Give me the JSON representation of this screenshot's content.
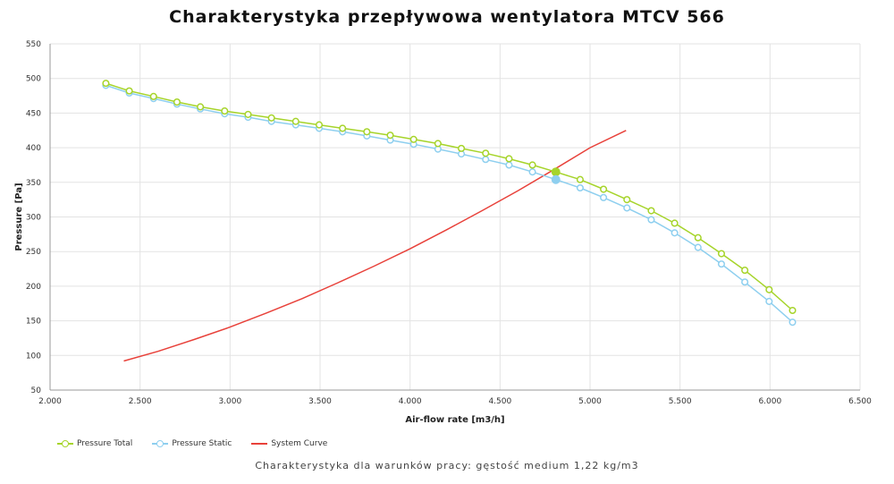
{
  "chart_data": {
    "type": "line",
    "title": "Charakterystyka przepływowa wentylatora MTCV 566",
    "xlabel": "Air-flow rate [m3/h]",
    "ylabel": "Pressure [Pa]",
    "xlim": [
      2000,
      6500
    ],
    "ylim": [
      50,
      550
    ],
    "x_ticks": [
      "2.000",
      "2.500",
      "3.000",
      "3.500",
      "4.000",
      "4.500",
      "5.000",
      "5.500",
      "6.000",
      "6.500"
    ],
    "x_tick_values": [
      2000,
      2500,
      3000,
      3500,
      4000,
      4500,
      5000,
      5500,
      6000,
      6500
    ],
    "y_ticks": [
      "550",
      "500",
      "450",
      "400",
      "350",
      "300",
      "250",
      "200",
      "150",
      "100",
      "50"
    ],
    "y_tick_values": [
      550,
      500,
      450,
      400,
      350,
      300,
      250,
      200,
      150,
      100,
      50
    ],
    "grid": true,
    "legend_position": "bottom-left",
    "series": [
      {
        "name": "Pressure Total",
        "color": "#a6d42a",
        "markers": true,
        "x": [
          2310,
          2440,
          2575,
          2705,
          2835,
          2970,
          3100,
          3230,
          3365,
          3495,
          3625,
          3760,
          3890,
          4020,
          4155,
          4285,
          4420,
          4550,
          4680,
          4810,
          4945,
          5075,
          5205,
          5340,
          5470,
          5600,
          5730,
          5860,
          5995,
          6125
        ],
        "y": [
          493,
          482,
          474,
          466,
          459,
          453,
          448,
          443,
          438,
          433,
          428,
          423,
          418,
          412,
          406,
          399,
          392,
          384,
          375,
          365,
          354,
          340,
          325,
          309,
          291,
          270,
          247,
          223,
          195,
          165
        ],
        "highlight": {
          "x": 4810,
          "y": 365
        }
      },
      {
        "name": "Pressure Static",
        "color": "#8ecfef",
        "markers": true,
        "x": [
          2310,
          2440,
          2575,
          2705,
          2835,
          2970,
          3100,
          3230,
          3365,
          3495,
          3625,
          3760,
          3890,
          4020,
          4155,
          4285,
          4420,
          4550,
          4680,
          4810,
          4945,
          5075,
          5205,
          5340,
          5470,
          5600,
          5730,
          5860,
          5995,
          6125
        ],
        "y": [
          490,
          479,
          471,
          463,
          456,
          449,
          444,
          438,
          433,
          428,
          423,
          417,
          411,
          405,
          398,
          391,
          383,
          375,
          365,
          354,
          342,
          328,
          313,
          296,
          277,
          256,
          232,
          206,
          178,
          148
        ],
        "highlight": {
          "x": 4810,
          "y": 354
        }
      },
      {
        "name": "System Curve",
        "color": "#e8413a",
        "markers": false,
        "x": [
          2410,
          2600,
          2800,
          3000,
          3200,
          3400,
          3600,
          3800,
          4000,
          4200,
          4400,
          4600,
          4810,
          5000,
          5200
        ],
        "y": [
          92,
          106,
          123,
          141,
          161,
          182,
          205,
          229,
          254,
          281,
          309,
          338,
          370,
          400,
          425
        ]
      }
    ]
  },
  "caption": "Charakterystyka dla warunków pracy: gęstość medium 1,22 kg/m3"
}
